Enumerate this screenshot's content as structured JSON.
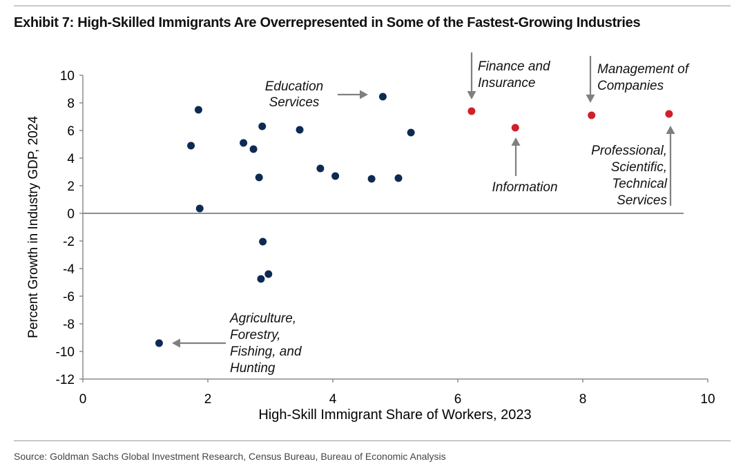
{
  "header": {
    "title": "Exhibit 7: High-Skilled Immigrants Are Overrepresented in Some of the Fastest-Growing Industries"
  },
  "footer": {
    "source": "Source: Goldman Sachs Global Investment Research, Census Bureau, Bureau of Economic Analysis"
  },
  "chart_data": {
    "type": "scatter",
    "xlabel": "High-Skill Immigrant Share of Workers, 2023",
    "ylabel": "Percent Growth in Industry GDP, 2024",
    "xlim": [
      0,
      10
    ],
    "ylim": [
      -12,
      10
    ],
    "xticks": [
      "0",
      "2",
      "4",
      "6",
      "8",
      "10"
    ],
    "yticks": [
      "10",
      "8",
      "6",
      "4",
      "2",
      "0",
      "-2",
      "-4",
      "-6",
      "-8",
      "-10",
      "-12"
    ],
    "grid": false,
    "colors": {
      "default": "#0d2b52",
      "highlight": "#d0202a",
      "arrow": "#7f7f7f",
      "axis": "#8c8c8c"
    },
    "points": [
      {
        "x": 1.22,
        "y": -9.4,
        "highlight": false
      },
      {
        "x": 1.73,
        "y": 4.9,
        "highlight": false
      },
      {
        "x": 1.85,
        "y": 7.5,
        "highlight": false
      },
      {
        "x": 1.87,
        "y": 0.35,
        "highlight": false
      },
      {
        "x": 2.57,
        "y": 5.1,
        "highlight": false
      },
      {
        "x": 2.73,
        "y": 4.65,
        "highlight": false
      },
      {
        "x": 2.82,
        "y": 2.6,
        "highlight": false
      },
      {
        "x": 2.85,
        "y": -4.75,
        "highlight": false
      },
      {
        "x": 2.87,
        "y": 6.3,
        "highlight": false
      },
      {
        "x": 2.88,
        "y": -2.05,
        "highlight": false
      },
      {
        "x": 2.97,
        "y": -4.4,
        "highlight": false
      },
      {
        "x": 3.47,
        "y": 6.05,
        "highlight": false
      },
      {
        "x": 3.8,
        "y": 3.25,
        "highlight": false
      },
      {
        "x": 4.04,
        "y": 2.7,
        "highlight": false
      },
      {
        "x": 4.62,
        "y": 2.5,
        "highlight": false
      },
      {
        "x": 4.8,
        "y": 8.45,
        "highlight": false
      },
      {
        "x": 5.05,
        "y": 2.55,
        "highlight": false
      },
      {
        "x": 5.25,
        "y": 5.85,
        "highlight": false
      },
      {
        "x": 6.22,
        "y": 7.4,
        "highlight": true
      },
      {
        "x": 6.92,
        "y": 6.2,
        "highlight": true
      },
      {
        "x": 8.14,
        "y": 7.1,
        "highlight": true
      },
      {
        "x": 9.38,
        "y": 7.2,
        "highlight": true
      }
    ],
    "annotations": [
      {
        "lines": [
          "Education",
          "Services"
        ],
        "target": {
          "x": 4.8,
          "y": 8.45
        }
      },
      {
        "lines": [
          "Finance and",
          "Insurance"
        ],
        "target": {
          "x": 6.22,
          "y": 7.4
        }
      },
      {
        "lines": [
          "Management of",
          "Companies"
        ],
        "target": {
          "x": 8.14,
          "y": 7.1
        }
      },
      {
        "lines": [
          "Information"
        ],
        "target": {
          "x": 6.92,
          "y": 6.2
        }
      },
      {
        "lines": [
          "Professional,",
          "Scientific,",
          "Technical",
          "Services"
        ],
        "target": {
          "x": 9.38,
          "y": 7.2
        }
      },
      {
        "lines": [
          "Agriculture,",
          "Forestry,",
          "Fishing, and",
          "Hunting"
        ],
        "target": {
          "x": 1.22,
          "y": -9.4
        }
      }
    ]
  }
}
